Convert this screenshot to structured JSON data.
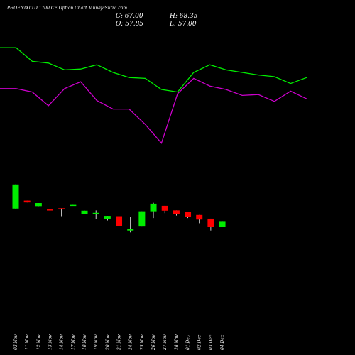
{
  "header": {
    "title": "PHOENIXLTD 1700  CE Option  Chart MunafaSutra.com",
    "close": "C: 67.00",
    "open": "O: 57.85",
    "high": "H: 68.35",
    "low": "L: 57.00"
  },
  "chart_data": [
    {
      "type": "line",
      "title": "",
      "series": [
        {
          "color": "#00ee00",
          "values": [
            72,
            72,
            64,
            63,
            59,
            59.5,
            62,
            57.5,
            54.5,
            54,
            47.5,
            46,
            57.5,
            62,
            59,
            57.5,
            56,
            55,
            51,
            54.5
          ]
        },
        {
          "color": "#cc00cc",
          "values": [
            48,
            48,
            46,
            38,
            48,
            52,
            41,
            36,
            36,
            27,
            16,
            45,
            54,
            49.5,
            47.5,
            44,
            44.5,
            40.5,
            46.5,
            42
          ]
        }
      ]
    },
    {
      "type": "candlestick",
      "title": "",
      "categories": [
        "03 Nov",
        "11 Nov",
        "12 Nov",
        "13 Nov",
        "14 Nov",
        "17 Nov",
        "18 Nov",
        "19 Nov",
        "20 Nov",
        "21 Nov",
        "24 Nov",
        "25 Nov",
        "26 Nov",
        "27 Nov",
        "28 Nov",
        "01 Dec",
        "02 Dec",
        "03 Dec",
        "04 Dec"
      ],
      "candles": [
        {
          "open": 61,
          "high": 140,
          "low": 61,
          "close": 140,
          "color": "#00ee00"
        },
        {
          "open": 87,
          "high": 87,
          "low": 81,
          "close": 81,
          "color": "#ff0000"
        },
        {
          "open": 69,
          "high": 79,
          "low": 69,
          "close": 79,
          "color": "#00ee00"
        },
        {
          "open": 58,
          "high": 58,
          "low": 57,
          "close": 57,
          "color": "#ff0000"
        },
        {
          "open": 62,
          "high": 62,
          "low": 36,
          "close": 59,
          "color": "#ff0000"
        },
        {
          "open": 73,
          "high": 73,
          "low": 72,
          "close": 72,
          "color": "#00ee00"
        },
        {
          "open": 44,
          "high": 54,
          "low": 42,
          "close": 54,
          "color": "#00ee00"
        },
        {
          "open": 46,
          "high": 55,
          "low": 26,
          "close": 47,
          "color": "#00ee00"
        },
        {
          "open": 28,
          "high": 37,
          "low": 22,
          "close": 37,
          "color": "#00ee00"
        },
        {
          "open": 36,
          "high": 36,
          "low": 0,
          "close": 4,
          "color": "#ff0000"
        },
        {
          "open": -11,
          "high": 34,
          "low": -17,
          "close": -7,
          "color": "#00ee00"
        },
        {
          "open": 2,
          "high": 52,
          "low": 2,
          "close": 52,
          "color": "#00ee00"
        },
        {
          "open": 52,
          "high": 80,
          "low": 30,
          "close": 77,
          "color": "#00ee00"
        },
        {
          "open": 70,
          "high": 70,
          "low": 46,
          "close": 54,
          "color": "#ff0000"
        },
        {
          "open": 55,
          "high": 55,
          "low": 38,
          "close": 43,
          "color": "#ff0000"
        },
        {
          "open": 50,
          "high": 50,
          "low": 30,
          "close": 34,
          "color": "#ff0000"
        },
        {
          "open": 40,
          "high": 40,
          "low": 13,
          "close": 25,
          "color": "#ff0000"
        },
        {
          "open": 28,
          "high": 28,
          "low": -11,
          "close": 0,
          "color": "#ff0000"
        },
        {
          "open": 0,
          "high": 20,
          "low": 0,
          "close": 20,
          "color": "#00ee00"
        }
      ]
    }
  ]
}
